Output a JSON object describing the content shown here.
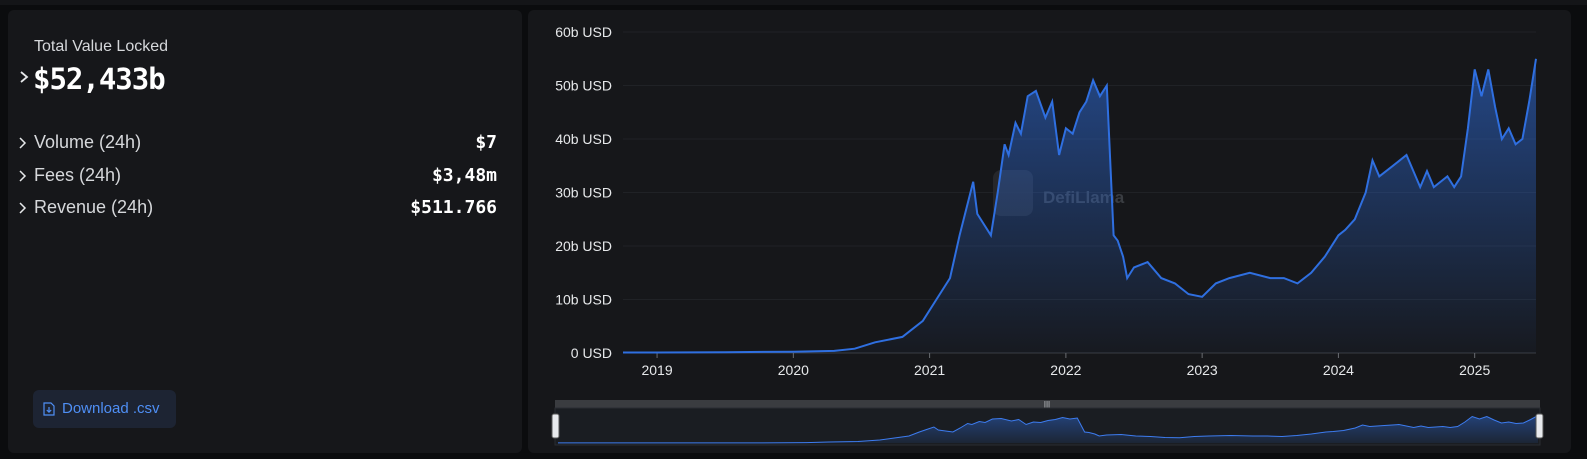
{
  "summary": {
    "tvl_label": "Total Value Locked",
    "tvl_value": "$52,433b",
    "rows": [
      {
        "label": "Volume (24h)",
        "value": "$7"
      },
      {
        "label": "Fees (24h)",
        "value": "$3,48m"
      },
      {
        "label": "Revenue (24h)",
        "value": "$511.766"
      }
    ]
  },
  "download": {
    "label": "Download .csv",
    "icon": "file-download-icon"
  },
  "watermark": {
    "text": "DefiLlama"
  },
  "colors": {
    "line": "#2f6fe0",
    "accent": "#4f8ff5",
    "panel": "#16171a"
  },
  "chart_data": {
    "type": "area",
    "title": "",
    "xlabel": "",
    "ylabel": "",
    "ylim": [
      0,
      60
    ],
    "y_ticks": [
      "0 USD",
      "10b USD",
      "20b USD",
      "30b USD",
      "40b USD",
      "50b USD",
      "60b USD"
    ],
    "x_ticks": [
      "2019",
      "2020",
      "2021",
      "2022",
      "2023",
      "2024",
      "2025"
    ],
    "grid": true,
    "legend": "none",
    "series": [
      {
        "values_unit": "b USD",
        "x": [
          2018.75,
          2019.0,
          2019.5,
          2020.0,
          2020.3,
          2020.45,
          2020.6,
          2020.8,
          2020.95,
          2021.05,
          2021.15,
          2021.22,
          2021.27,
          2021.32,
          2021.35,
          2021.4,
          2021.45,
          2021.5,
          2021.55,
          2021.58,
          2021.63,
          2021.67,
          2021.72,
          2021.78,
          2021.85,
          2021.9,
          2021.95,
          2022.0,
          2022.05,
          2022.1,
          2022.15,
          2022.2,
          2022.25,
          2022.3,
          2022.35,
          2022.38,
          2022.42,
          2022.45,
          2022.5,
          2022.6,
          2022.7,
          2022.8,
          2022.9,
          2023.0,
          2023.1,
          2023.2,
          2023.35,
          2023.5,
          2023.6,
          2023.7,
          2023.8,
          2023.9,
          2024.0,
          2024.05,
          2024.12,
          2024.2,
          2024.25,
          2024.3,
          2024.4,
          2024.5,
          2024.6,
          2024.65,
          2024.7,
          2024.8,
          2024.85,
          2024.9,
          2024.95,
          2025.0,
          2025.05,
          2025.1,
          2025.15,
          2025.2,
          2025.25,
          2025.3,
          2025.35,
          2025.4,
          2025.45
        ],
        "values": [
          0.1,
          0.1,
          0.15,
          0.25,
          0.4,
          0.8,
          2.0,
          3.0,
          6.0,
          10.0,
          14.0,
          22.0,
          27.0,
          32.0,
          26.0,
          24.0,
          22.0,
          30.0,
          39.0,
          37.0,
          43.0,
          41.0,
          48.0,
          49.0,
          44.0,
          47.0,
          37.0,
          42.0,
          41.0,
          45.0,
          47.0,
          51.0,
          48.0,
          50.0,
          22.0,
          21.0,
          18.0,
          14.0,
          16.0,
          17.0,
          14.0,
          13.0,
          11.0,
          10.5,
          13.0,
          14.0,
          15.0,
          14.0,
          14.0,
          13.0,
          15.0,
          18.0,
          22.0,
          23.0,
          25.0,
          30.0,
          36.0,
          33.0,
          35.0,
          37.0,
          31.0,
          34.0,
          31.0,
          33.0,
          31.0,
          33.0,
          42.0,
          53.0,
          48.0,
          53.0,
          46.0,
          40.0,
          42.0,
          39.0,
          40.0,
          47.0,
          55.0
        ]
      }
    ]
  }
}
